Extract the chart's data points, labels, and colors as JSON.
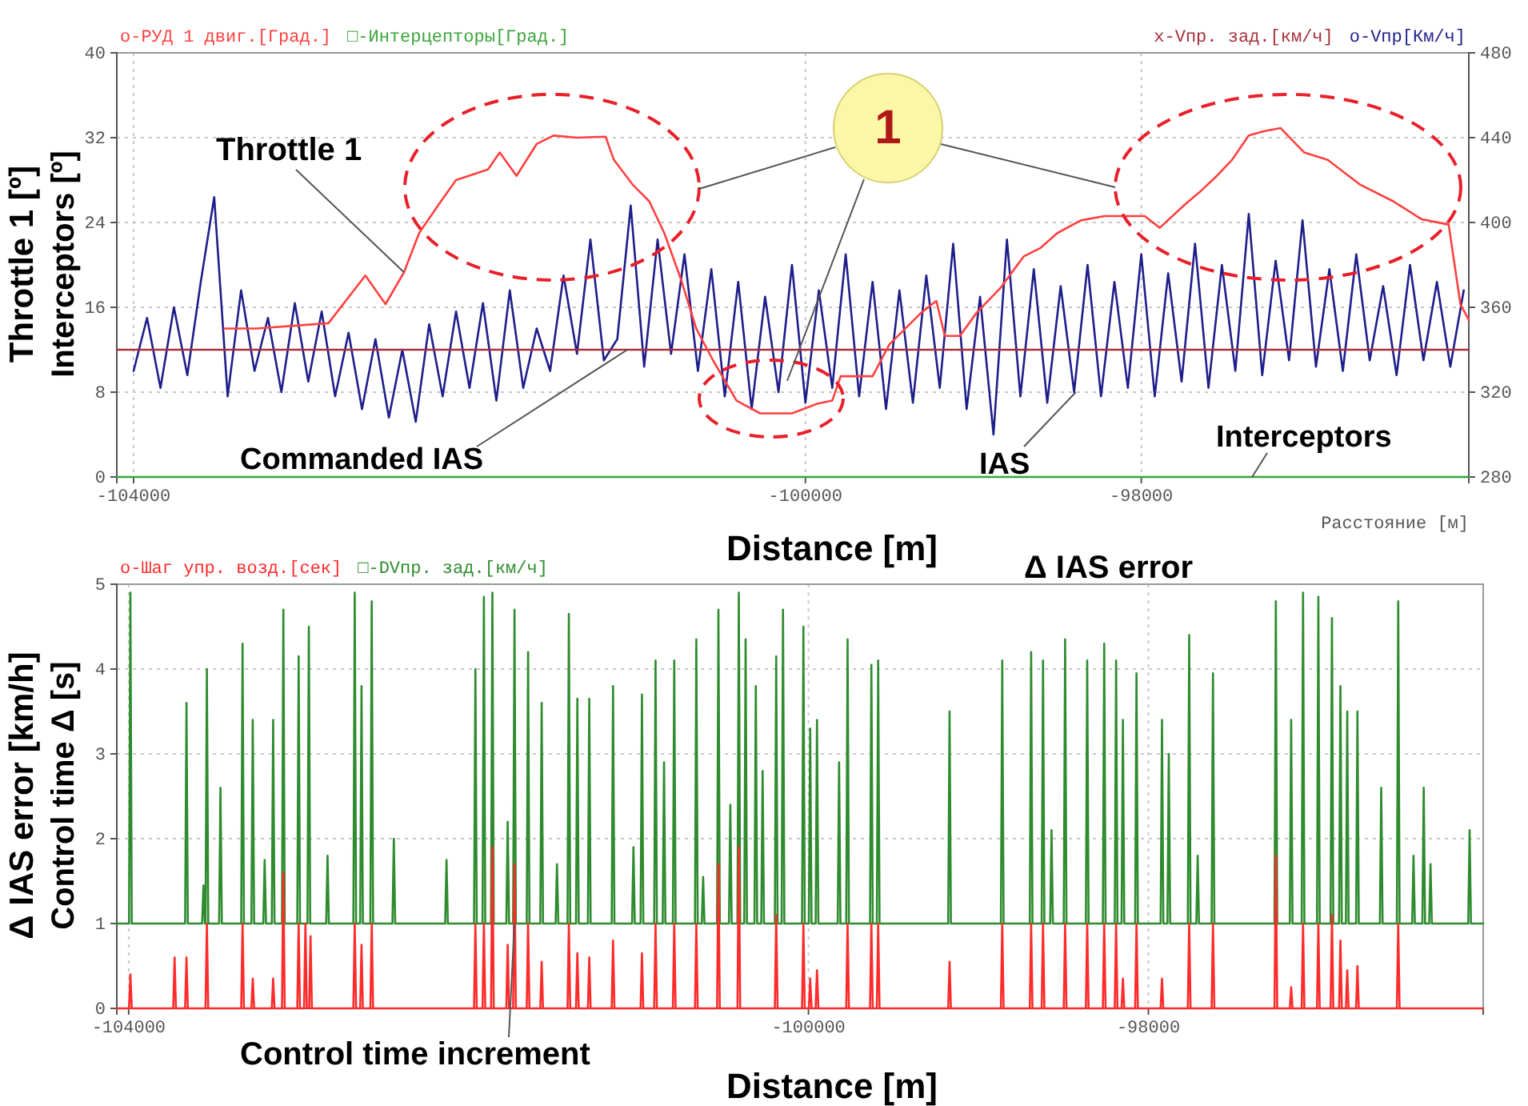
{
  "chart_data": [
    {
      "type": "line",
      "xlabel": "Distance [m]",
      "ylabel": "Throttle 1 [º]",
      "xlim": [
        -104100,
        -96050
      ],
      "xticks": [
        -104000,
        -100000,
        -98000
      ],
      "ylim": [
        0,
        40
      ],
      "yticks": [
        0,
        8,
        16,
        24,
        32,
        40
      ],
      "y2lim": [
        280,
        480
      ],
      "y2ticks": [
        280,
        320,
        360,
        400,
        440,
        480
      ],
      "grid": true,
      "legend": "top",
      "annotations": [
        {
          "text": "Throttle 1",
          "x": -102390,
          "y": 19.3
        },
        {
          "text": "Commanded IAS",
          "x": -101060,
          "y": 12
        },
        {
          "text": "IAS",
          "x": -98390,
          "y": 8
        },
        {
          "text": "Interceptors",
          "x": -97340,
          "y": 0
        },
        "1",
        "Interceptors [º]",
        "Расстояние [м]"
      ],
      "series": [
        {
          "name": "о-РУД 1 двиг.[Град.]",
          "color": "#ff4040",
          "x": [
            -103460,
            -103270,
            -102840,
            -102620,
            -102500,
            -102390,
            -102300,
            -102170,
            -102080,
            -101890,
            -101820,
            -101720,
            -101600,
            -101500,
            -101360,
            -101190,
            -101140,
            -101030,
            -100930,
            -100840,
            -100740,
            -100650,
            -100550,
            -100410,
            -100270,
            -100080,
            -99930,
            -99840,
            -99790,
            -99600,
            -99500,
            -99310,
            -99220,
            -99170,
            -99080,
            -98980,
            -98840,
            -98700,
            -98600,
            -98500,
            -98360,
            -98220,
            -97980,
            -97890,
            -97740,
            -97650,
            -97550,
            -97460,
            -97360,
            -97270,
            -97170,
            -97030,
            -96890,
            -96700,
            -96500,
            -96330,
            -96170,
            -96100,
            -96050
          ],
          "values": [
            14,
            14,
            14.5,
            19,
            16.3,
            19.3,
            23,
            26,
            28,
            29,
            30.6,
            28.4,
            31.4,
            32.2,
            32,
            32.1,
            29.9,
            27.6,
            26,
            23,
            18.6,
            14,
            11,
            7.2,
            6,
            6,
            6.9,
            7.2,
            9.5,
            9.5,
            12.5,
            15.5,
            16.6,
            13.3,
            13.3,
            15.5,
            17.8,
            20.8,
            21.6,
            23,
            24.2,
            24.6,
            24.6,
            23.5,
            25.7,
            26.9,
            28.4,
            29.9,
            32.2,
            32.6,
            32.9,
            30.6,
            29.9,
            27.6,
            26,
            24.3,
            23.8,
            16.3,
            14.8
          ]
        },
        {
          "name": "□-Интерцепторы[Град.]",
          "color": "#3aa53a",
          "x": [
            -104100,
            -96050
          ],
          "values": [
            0,
            0
          ]
        },
        {
          "name": "x-Vпр. зад.[км/ч]",
          "color": "#a8303c",
          "axis": "y2",
          "x": [
            -104100,
            -96050
          ],
          "values": [
            340,
            340
          ]
        },
        {
          "name": "о-Vпр[Км/ч]",
          "color": "#1e1e8a",
          "axis": "y2",
          "x": [
            -104000,
            -103920,
            -103840,
            -103760,
            -103680,
            -103600,
            -103520,
            -103440,
            -103360,
            -103280,
            -103200,
            -103120,
            -103040,
            -102960,
            -102880,
            -102800,
            -102720,
            -102640,
            -102560,
            -102480,
            -102400,
            -102320,
            -102240,
            -102160,
            -102080,
            -102000,
            -101920,
            -101840,
            -101760,
            -101680,
            -101600,
            -101520,
            -101440,
            -101360,
            -101280,
            -101200,
            -101120,
            -101040,
            -100960,
            -100880,
            -100800,
            -100720,
            -100640,
            -100560,
            -100480,
            -100400,
            -100320,
            -100240,
            -100160,
            -100080,
            -100000,
            -99920,
            -99840,
            -99760,
            -99680,
            -99600,
            -99520,
            -99440,
            -99360,
            -99280,
            -99200,
            -99120,
            -99040,
            -98960,
            -98880,
            -98800,
            -98720,
            -98640,
            -98560,
            -98480,
            -98400,
            -98320,
            -98240,
            -98160,
            -98080,
            -98000,
            -97920,
            -97840,
            -97760,
            -97680,
            -97600,
            -97520,
            -97440,
            -97360,
            -97280,
            -97200,
            -97120,
            -97040,
            -96960,
            -96880,
            -96800,
            -96720,
            -96640,
            -96560,
            -96480,
            -96400,
            -96320,
            -96240,
            -96160,
            -96080
          ],
          "values": [
            330,
            355,
            322,
            360,
            328,
            372,
            412,
            318,
            368,
            330,
            355,
            320,
            362,
            325,
            358,
            318,
            348,
            312,
            345,
            308,
            340,
            306,
            352,
            318,
            358,
            322,
            362,
            316,
            368,
            322,
            350,
            330,
            375,
            338,
            392,
            335,
            345,
            408,
            332,
            392,
            338,
            385,
            330,
            378,
            318,
            372,
            312,
            365,
            320,
            380,
            315,
            368,
            322,
            385,
            318,
            372,
            312,
            368,
            315,
            375,
            322,
            390,
            312,
            365,
            300,
            392,
            318,
            378,
            315,
            370,
            320,
            380,
            318,
            372,
            322,
            385,
            318,
            376,
            325,
            390,
            322,
            380,
            330,
            404,
            328,
            382,
            335,
            401,
            332,
            378,
            330,
            385,
            335,
            370,
            328,
            380,
            335,
            372,
            332,
            368
          ]
        }
      ]
    },
    {
      "type": "line",
      "xlabel": "Distance [m]",
      "ylabel": "Δ IAS error  [km/h]",
      "xlim": [
        -104070,
        -96030
      ],
      "xticks": [
        -104000,
        -100000,
        -98000
      ],
      "ylim": [
        0,
        5
      ],
      "yticks": [
        0,
        1,
        2,
        3,
        4,
        5
      ],
      "grid": true,
      "legend": "top",
      "annotations": [
        "Δ IAS error",
        {
          "text": "Control time increment",
          "x": -101730,
          "y": 1
        },
        "Control time Δ [s]"
      ],
      "series": [
        {
          "name": "о-Шаг упр. возд.[сек]",
          "color": "#ff2a2a",
          "x": [
            -104070,
            -103998,
            -103990,
            -103982,
            -103738,
            -103730,
            -103722,
            -103668,
            -103660,
            -103652,
            -103548,
            -103540,
            -103532,
            -103338,
            -103330,
            -103322,
            -103278,
            -103270,
            -103262,
            -103158,
            -103150,
            -103142,
            -103098,
            -103090,
            -103082,
            -103008,
            -103000,
            -102992,
            -102968,
            -102960,
            -102952,
            -102938,
            -102930,
            -102922,
            -102678,
            -102670,
            -102662,
            -102638,
            -102630,
            -102622,
            -102578,
            -102570,
            -102562,
            -101968,
            -101960,
            -101952,
            -101918,
            -101910,
            -101902,
            -101868,
            -101860,
            -101852,
            -101778,
            -101770,
            -101762,
            -101738,
            -101730,
            -101722,
            -101658,
            -101650,
            -101642,
            -101578,
            -101570,
            -101562,
            -101418,
            -101410,
            -101402,
            -101368,
            -101360,
            -101352,
            -101298,
            -101290,
            -101282,
            -101158,
            -101150,
            -101142,
            -100988,
            -100980,
            -100972,
            -100908,
            -100900,
            -100892,
            -100798,
            -100790,
            -100782,
            -100668,
            -100660,
            -100652,
            -100538,
            -100530,
            -100522,
            -100418,
            -100410,
            -100402,
            -100198,
            -100190,
            -100182,
            -100038,
            -100030,
            -100022,
            -99998,
            -99990,
            -99982,
            -99958,
            -99950,
            -99942,
            -99778,
            -99770,
            -99762,
            -99638,
            -99630,
            -99622,
            -99598,
            -99590,
            -99582,
            -99178,
            -99170,
            -99162,
            -98868,
            -98860,
            -98852,
            -98698,
            -98690,
            -98682,
            -98628,
            -98620,
            -98612,
            -98498,
            -98490,
            -98482,
            -98368,
            -98360,
            -98352,
            -98268,
            -98260,
            -98252,
            -98198,
            -98190,
            -98182,
            -98158,
            -98150,
            -98142,
            -98078,
            -98070,
            -98062,
            -97928,
            -97920,
            -97912,
            -97768,
            -97760,
            -97752,
            -97628,
            -97620,
            -97612,
            -97258,
            -97250,
            -97242,
            -97168,
            -97160,
            -97152,
            -97098,
            -97090,
            -97082,
            -97008,
            -97000,
            -96992,
            -96928,
            -96920,
            -96912,
            -96878,
            -96870,
            -96862,
            -96838,
            -96830,
            -96822,
            -96778,
            -96770,
            -96762,
            -96538,
            -96530,
            -96522,
            -96030
          ],
          "values": [
            0,
            0,
            0.4,
            0,
            0,
            0.6,
            0,
            0,
            0.6,
            0,
            0,
            1,
            0,
            0,
            1,
            0,
            0,
            0.35,
            0,
            0,
            0.35,
            0,
            0,
            1.6,
            0,
            0,
            1,
            0,
            0,
            1,
            0,
            0,
            0.85,
            0,
            0,
            1,
            0,
            0,
            0.75,
            0,
            0,
            1,
            0,
            0,
            1,
            0,
            0,
            1,
            0,
            0,
            1.9,
            0,
            0,
            0.75,
            0,
            0,
            1.7,
            0,
            0,
            1,
            0,
            0,
            0.55,
            0,
            0,
            1,
            0,
            0,
            0.65,
            0,
            0,
            0.6,
            0,
            0,
            0.8,
            0,
            0,
            0.65,
            0,
            0,
            1,
            0,
            0,
            1,
            0,
            0,
            1,
            0,
            0,
            1.7,
            0,
            0,
            1.9,
            0,
            0,
            1.1,
            0,
            0,
            1,
            0,
            0,
            0.35,
            0,
            0,
            0.45,
            0,
            0,
            1,
            0,
            0,
            1,
            0,
            0,
            1,
            0,
            0,
            0.55,
            0,
            0,
            1,
            0,
            0,
            1,
            0,
            0,
            1,
            0,
            0,
            1,
            0,
            0,
            1,
            0,
            0,
            1,
            0,
            0,
            1,
            0,
            0,
            0.35,
            0,
            0,
            1,
            0,
            0,
            0.35,
            0,
            0,
            1,
            0,
            0,
            1,
            0,
            0,
            1.8,
            0,
            0,
            0.25,
            0,
            0,
            1,
            0,
            0,
            1,
            0,
            0,
            1.1,
            0,
            0,
            0.8,
            0,
            0,
            0.45,
            0,
            0,
            0.5,
            0,
            0,
            1,
            0,
            0
          ]
        },
        {
          "name": "□-DVпр. зад.[км/ч]",
          "color": "#2e8b2e",
          "x": [
            -104070,
            -103998,
            -103990,
            -103982,
            -103668,
            -103660,
            -103652,
            -103568,
            -103560,
            -103552,
            -103548,
            -103540,
            -103532,
            -103468,
            -103460,
            -103452,
            -103338,
            -103330,
            -103322,
            -103278,
            -103270,
            -103262,
            -103208,
            -103200,
            -103192,
            -103158,
            -103150,
            -103142,
            -103098,
            -103090,
            -103082,
            -103008,
            -103000,
            -102992,
            -102948,
            -102940,
            -102932,
            -102838,
            -102830,
            -102822,
            -102678,
            -102670,
            -102662,
            -102638,
            -102630,
            -102622,
            -102578,
            -102570,
            -102562,
            -102448,
            -102440,
            -102432,
            -102138,
            -102130,
            -102122,
            -101968,
            -101960,
            -101952,
            -101918,
            -101910,
            -101902,
            -101868,
            -101860,
            -101852,
            -101778,
            -101770,
            -101762,
            -101738,
            -101730,
            -101722,
            -101658,
            -101650,
            -101642,
            -101578,
            -101570,
            -101562,
            -101488,
            -101480,
            -101472,
            -101418,
            -101410,
            -101402,
            -101368,
            -101360,
            -101352,
            -101298,
            -101290,
            -101282,
            -101158,
            -101150,
            -101142,
            -101038,
            -101030,
            -101022,
            -100988,
            -100980,
            -100972,
            -100908,
            -100900,
            -100892,
            -100858,
            -100850,
            -100842,
            -100798,
            -100790,
            -100782,
            -100668,
            -100660,
            -100652,
            -100628,
            -100620,
            -100612,
            -100538,
            -100530,
            -100522,
            -100468,
            -100460,
            -100452,
            -100418,
            -100410,
            -100402,
            -100378,
            -100370,
            -100362,
            -100318,
            -100310,
            -100302,
            -100278,
            -100270,
            -100262,
            -100198,
            -100190,
            -100182,
            -100158,
            -100150,
            -100142,
            -100038,
            -100030,
            -100022,
            -99998,
            -99990,
            -99982,
            -99958,
            -99950,
            -99942,
            -99828,
            -99820,
            -99812,
            -99778,
            -99770,
            -99762,
            -99638,
            -99630,
            -99622,
            -99598,
            -99590,
            -99582,
            -99178,
            -99170,
            -99162,
            -98868,
            -98860,
            -98852,
            -98698,
            -98690,
            -98682,
            -98628,
            -98620,
            -98612,
            -98578,
            -98570,
            -98562,
            -98498,
            -98490,
            -98482,
            -98368,
            -98360,
            -98352,
            -98268,
            -98260,
            -98252,
            -98198,
            -98190,
            -98182,
            -98158,
            -98150,
            -98142,
            -98078,
            -98070,
            -98062,
            -97928,
            -97920,
            -97912,
            -97888,
            -97880,
            -97872,
            -97768,
            -97760,
            -97752,
            -97718,
            -97710,
            -97702,
            -97628,
            -97620,
            -97612,
            -97258,
            -97250,
            -97242,
            -97168,
            -97160,
            -97152,
            -97098,
            -97090,
            -97082,
            -97008,
            -97000,
            -96992,
            -96928,
            -96920,
            -96912,
            -96878,
            -96870,
            -96862,
            -96838,
            -96830,
            -96822,
            -96778,
            -96770,
            -96762,
            -96638,
            -96630,
            -96622,
            -96538,
            -96530,
            -96522,
            -96448,
            -96440,
            -96432,
            -96388,
            -96380,
            -96372,
            -96348,
            -96340,
            -96332,
            -96118,
            -96110,
            -96102,
            -96030
          ],
          "values": [
            1,
            1,
            4.9,
            1,
            1,
            3.6,
            1,
            1,
            1.45,
            1,
            1,
            4,
            1,
            1,
            2.6,
            1,
            1,
            4.3,
            1,
            1,
            3.4,
            1,
            1,
            1.75,
            1,
            1,
            3.4,
            1,
            1,
            4.7,
            1,
            1,
            4.15,
            1,
            1,
            4.5,
            1,
            1,
            1.8,
            1,
            1,
            4.9,
            1,
            1,
            3.8,
            1,
            1,
            4.8,
            1,
            1,
            2,
            1,
            1,
            1.75,
            1,
            1,
            4,
            1,
            1,
            4.85,
            1,
            1,
            4.9,
            1,
            1,
            2.2,
            1,
            1,
            4.7,
            1,
            1,
            4.2,
            1,
            1,
            3.6,
            1,
            1,
            1.7,
            1,
            1,
            4.65,
            1,
            1,
            3.65,
            1,
            1,
            3.65,
            1,
            1,
            3.8,
            1,
            1,
            1.9,
            1,
            1,
            3.7,
            1,
            1,
            4.1,
            1,
            1,
            2.9,
            1,
            1,
            4.1,
            1,
            1,
            4.35,
            1,
            1,
            1.55,
            1,
            1,
            4.7,
            1,
            1,
            2.4,
            1,
            1,
            4.9,
            1,
            1,
            4.35,
            1,
            1,
            3.8,
            1,
            1,
            2.8,
            1,
            1,
            4.15,
            1,
            1,
            4.7,
            1,
            1,
            4.5,
            1,
            1,
            3.3,
            1,
            1,
            3.4,
            1,
            1,
            2.9,
            1,
            1,
            4.35,
            1,
            1,
            4.05,
            1,
            1,
            4.1,
            1,
            1,
            3.5,
            1,
            1,
            4.1,
            1,
            1,
            4.2,
            1,
            1,
            4.1,
            1,
            1,
            2.1,
            1,
            1,
            4.35,
            1,
            1,
            4.1,
            1,
            1,
            4.3,
            1,
            1,
            4.1,
            1,
            1,
            3.4,
            1,
            1,
            3.95,
            1,
            1,
            3.4,
            1,
            1,
            3,
            1,
            1,
            4.4,
            1,
            1,
            1.8,
            1,
            1,
            3.95,
            1,
            1,
            4.8,
            1,
            1,
            3.4,
            1,
            1,
            4.9,
            1,
            1,
            4.85,
            1,
            1,
            4.6,
            1,
            1,
            3.8,
            1,
            1,
            3.5,
            1,
            1,
            3.5,
            1,
            1,
            2.6,
            1,
            1,
            4.8,
            1,
            1,
            1.8,
            1,
            1,
            2.6,
            1,
            1,
            1.7,
            1,
            1,
            2.1,
            1,
            1
          ]
        }
      ]
    }
  ]
}
